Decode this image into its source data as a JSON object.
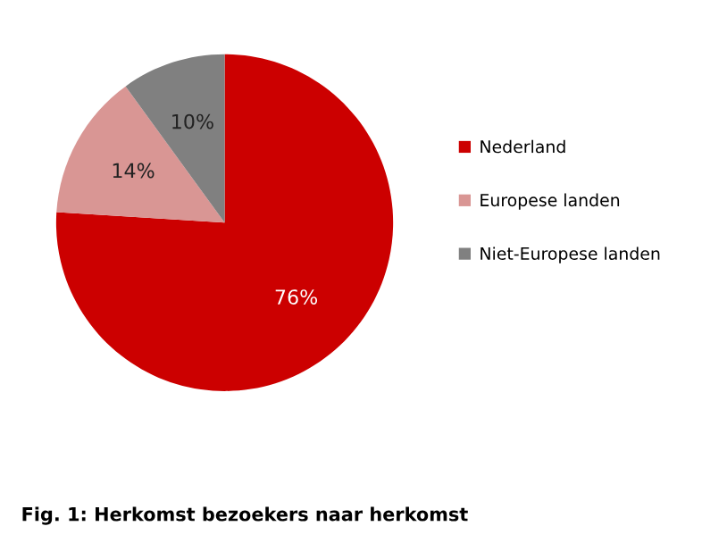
{
  "chart_data": {
    "type": "pie",
    "categories": [
      "Nederland",
      "Europese landen",
      "Niet-Europese landen"
    ],
    "values": [
      76,
      14,
      10
    ],
    "colors": [
      "#cc0000",
      "#d99694",
      "#808080"
    ],
    "value_labels": [
      "76%",
      "14%",
      "10%"
    ],
    "legend": "right",
    "annotations": [
      "Fig. 1: Herkomst bezoekers naar herkomst"
    ]
  }
}
